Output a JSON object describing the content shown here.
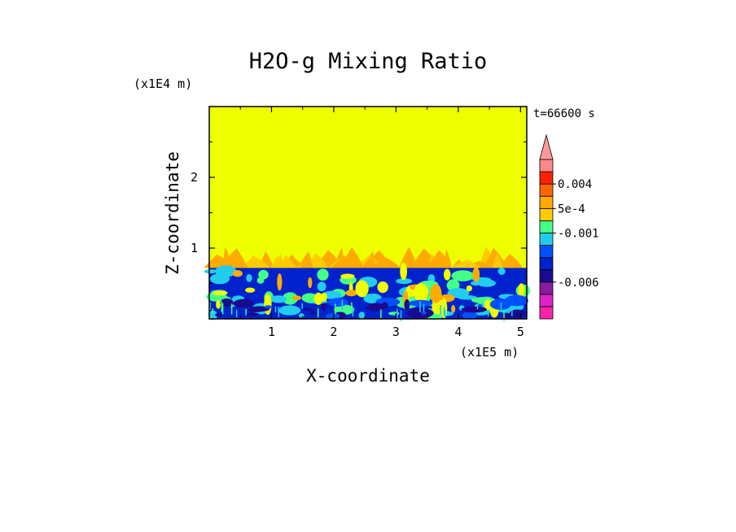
{
  "chart_data": {
    "type": "heatmap",
    "title": "H2O-g Mixing Ratio",
    "xlabel": "X-coordinate",
    "ylabel": "Z-coordinate",
    "x_unit": "(x1E5 m)",
    "y_unit": "(x1E4 m)",
    "time_label": "t=66600 s",
    "xlim": [
      0,
      5.1
    ],
    "ylim": [
      0,
      3
    ],
    "x_ticks": [
      1,
      2,
      3,
      4,
      5
    ],
    "y_ticks": [
      1,
      2
    ],
    "background_color": "#eeff00",
    "upper_field_value_color": "#eeff00",
    "mixed_layer_top": 0.72,
    "plume_top": 1.05,
    "colorbar": {
      "levels": [
        {
          "color": "#ff22aa"
        },
        {
          "color": "#dd22cc"
        },
        {
          "color": "#8a1aa0"
        },
        {
          "color": "#1a0a90"
        },
        {
          "color": "#0022cc"
        },
        {
          "color": "#0050ff"
        },
        {
          "color": "#22ccee"
        },
        {
          "color": "#44ff88"
        },
        {
          "color": "#ffcc00"
        },
        {
          "color": "#ffaa00"
        },
        {
          "color": "#ff6600"
        },
        {
          "color": "#ff2200"
        },
        {
          "color": "#ff8888"
        }
      ],
      "labels": [
        {
          "text": "0.004",
          "level_index": 10
        },
        {
          "text": "5e-4",
          "level_index": 8
        },
        {
          "text": "-0.001",
          "level_index": 6
        },
        {
          "text": "-0.006",
          "level_index": 2
        }
      ],
      "extend_top": true,
      "extend_color": "#ff9999"
    }
  }
}
